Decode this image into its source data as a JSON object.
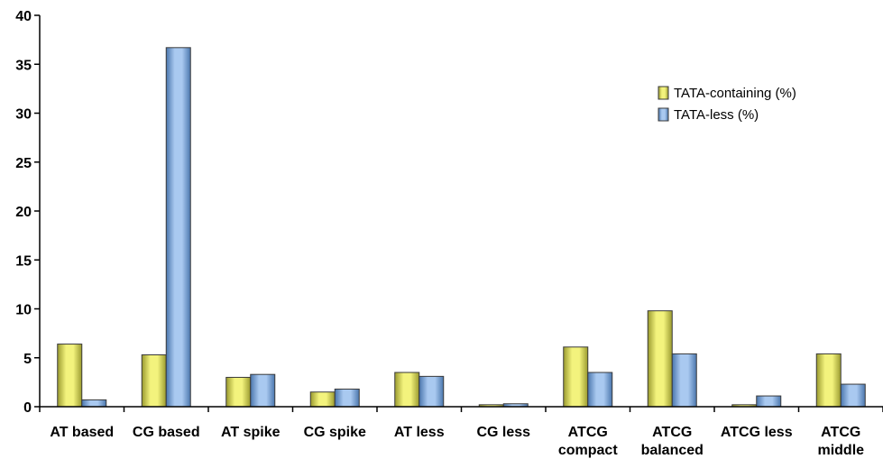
{
  "chart_data": {
    "type": "bar",
    "categories": [
      [
        "AT based"
      ],
      [
        "CG based"
      ],
      [
        "AT spike"
      ],
      [
        "CG spike"
      ],
      [
        "AT less"
      ],
      [
        "CG less"
      ],
      [
        "ATCG",
        "compact"
      ],
      [
        "ATCG",
        "balanced"
      ],
      [
        "ATCG less"
      ],
      [
        "ATCG",
        "middle"
      ]
    ],
    "series": [
      {
        "name": "TATA-containing (%)",
        "color": "#f3f37d",
        "color_dark": "#9a9a2e",
        "values": [
          6.4,
          5.3,
          3.0,
          1.5,
          3.5,
          0.2,
          6.1,
          9.8,
          0.2,
          5.4
        ]
      },
      {
        "name": "TATA-less (%)",
        "color": "#a9c9f0",
        "color_dark": "#4a76ad",
        "values": [
          0.7,
          36.7,
          3.3,
          1.8,
          3.1,
          0.3,
          3.5,
          5.4,
          1.1,
          2.3
        ]
      }
    ],
    "ylim": [
      0,
      40
    ],
    "yticks": [
      0,
      5,
      10,
      15,
      20,
      25,
      30,
      35,
      40
    ],
    "legend_position": "top-right",
    "grid": false
  }
}
